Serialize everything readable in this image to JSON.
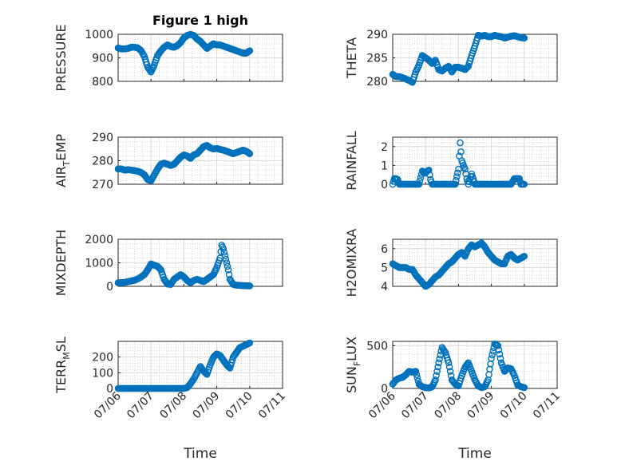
{
  "figure": {
    "title": "Figure 1 high",
    "xlabel": "Time",
    "x_tick_labels": [
      "07/06",
      "07/07",
      "07/08",
      "07/09",
      "07/10",
      "07/11"
    ],
    "marker_color": "#0072BD",
    "grid": "on (major + minor dotted)"
  },
  "chart_data": [
    {
      "type": "scatter",
      "ylabel": "PRESSURE",
      "ylim": [
        800,
        1000
      ],
      "yticks": [
        "800",
        "900",
        "1000"
      ],
      "xlim": [
        0,
        5
      ],
      "x": [
        0.0,
        0.1,
        0.2,
        0.3,
        0.4,
        0.5,
        0.6,
        0.7,
        0.8,
        0.9,
        1.0,
        1.1,
        1.2,
        1.3,
        1.4,
        1.5,
        1.6,
        1.7,
        1.8,
        1.9,
        2.0,
        2.1,
        2.2,
        2.3,
        2.4,
        2.5,
        2.6,
        2.7,
        2.8,
        2.9,
        3.0,
        3.1,
        3.2,
        3.3,
        3.4,
        3.5,
        3.6,
        3.7,
        3.8,
        3.9,
        4.0
      ],
      "y": [
        942,
        938,
        938,
        940,
        945,
        945,
        942,
        930,
        905,
        860,
        840,
        870,
        910,
        930,
        945,
        955,
        948,
        945,
        952,
        965,
        985,
        995,
        1000,
        995,
        980,
        970,
        955,
        940,
        950,
        960,
        955,
        955,
        950,
        945,
        940,
        935,
        930,
        925,
        920,
        920,
        930
      ]
    },
    {
      "type": "scatter",
      "ylabel": "THETA",
      "ylim": [
        280,
        290
      ],
      "yticks": [
        "280",
        "285",
        "290"
      ],
      "xlim": [
        0,
        5
      ],
      "x": [
        0.0,
        0.1,
        0.2,
        0.3,
        0.4,
        0.5,
        0.6,
        0.7,
        0.8,
        0.9,
        1.0,
        1.1,
        1.2,
        1.3,
        1.4,
        1.5,
        1.6,
        1.7,
        1.8,
        1.9,
        2.0,
        2.1,
        2.2,
        2.3,
        2.4,
        2.5,
        2.6,
        2.7,
        2.8,
        2.9,
        3.0,
        3.1,
        3.2,
        3.3,
        3.4,
        3.5,
        3.6,
        3.7,
        3.8,
        3.9,
        4.0
      ],
      "y": [
        281.5,
        281.0,
        281.0,
        280.8,
        280.5,
        280.2,
        279.8,
        282,
        283.5,
        285.5,
        285.0,
        284.5,
        283.8,
        284.5,
        282.5,
        282.2,
        282.8,
        283.2,
        282.0,
        283.0,
        283.0,
        282.8,
        282.5,
        283.2,
        285.5,
        287.5,
        289.8,
        289.6,
        289.8,
        289.5,
        289.5,
        289.8,
        289.6,
        289.5,
        289.2,
        289.4,
        289.6,
        289.7,
        289.5,
        289.3,
        289.2
      ]
    },
    {
      "type": "scatter",
      "ylabel": "AIR_TEMP",
      "ylabel_parts": [
        "AIR",
        "T",
        "EMP"
      ],
      "ylim": [
        270,
        290
      ],
      "yticks": [
        "270",
        "280",
        "290"
      ],
      "xlim": [
        0,
        5
      ],
      "x": [
        0.0,
        0.1,
        0.2,
        0.3,
        0.4,
        0.5,
        0.6,
        0.7,
        0.8,
        0.9,
        1.0,
        1.1,
        1.2,
        1.3,
        1.4,
        1.5,
        1.6,
        1.7,
        1.8,
        1.9,
        2.0,
        2.1,
        2.2,
        2.3,
        2.4,
        2.5,
        2.6,
        2.7,
        2.8,
        2.9,
        3.0,
        3.1,
        3.2,
        3.3,
        3.4,
        3.5,
        3.6,
        3.7,
        3.8,
        3.9,
        4.0
      ],
      "y": [
        276.5,
        276.5,
        276.0,
        276.2,
        276.0,
        275.8,
        275.5,
        275.0,
        274.0,
        272.0,
        271.5,
        274.0,
        276.5,
        278.5,
        279.0,
        278.5,
        278.0,
        278.5,
        280.0,
        281.5,
        282.5,
        282.0,
        281.0,
        282.5,
        283.0,
        284.5,
        286.0,
        286.5,
        285.5,
        285.0,
        285.2,
        284.8,
        284.5,
        284.0,
        283.5,
        283.0,
        283.5,
        284.0,
        284.5,
        284.0,
        283.0
      ]
    },
    {
      "type": "scatter",
      "ylabel": "RAINFALL",
      "ylim": [
        0,
        2.5
      ],
      "yticks": [
        "0",
        "1",
        "2"
      ],
      "xlim": [
        0,
        5
      ],
      "x": [
        0.0,
        0.05,
        0.1,
        0.15,
        0.2,
        0.3,
        0.4,
        0.5,
        0.6,
        0.7,
        0.8,
        0.9,
        1.0,
        1.05,
        1.1,
        1.15,
        1.2,
        1.3,
        1.4,
        1.5,
        1.6,
        1.7,
        1.8,
        1.9,
        2.0,
        2.05,
        2.1,
        2.15,
        2.2,
        2.25,
        2.3,
        2.4,
        2.5,
        2.6,
        2.7,
        2.8,
        2.9,
        3.0,
        3.1,
        3.2,
        3.3,
        3.4,
        3.5,
        3.6,
        3.7,
        3.8,
        3.85,
        3.9,
        4.0
      ],
      "y": [
        0,
        0.3,
        0.3,
        0.25,
        0,
        0,
        0,
        0,
        0,
        0,
        0,
        0.7,
        0.6,
        0.7,
        0.75,
        0.25,
        0,
        0,
        0,
        0,
        0,
        0,
        0,
        0,
        0.8,
        2.2,
        1.25,
        1.0,
        0.8,
        0.3,
        0,
        0.55,
        0,
        0,
        0,
        0,
        0,
        0,
        0,
        0,
        0,
        0,
        0,
        0,
        0.3,
        0.3,
        0.3,
        0,
        0
      ]
    },
    {
      "type": "scatter",
      "ylabel": "MIXDEPTH",
      "ylim": [
        0,
        2000
      ],
      "yticks": [
        "0",
        "1000",
        "2000"
      ],
      "xlim": [
        0,
        5
      ],
      "x": [
        0.0,
        0.1,
        0.2,
        0.3,
        0.4,
        0.5,
        0.6,
        0.7,
        0.8,
        0.9,
        1.0,
        1.1,
        1.2,
        1.3,
        1.4,
        1.5,
        1.6,
        1.7,
        1.8,
        1.9,
        2.0,
        2.1,
        2.2,
        2.3,
        2.4,
        2.5,
        2.6,
        2.7,
        2.8,
        2.9,
        3.0,
        3.05,
        3.1,
        3.15,
        3.2,
        3.25,
        3.3,
        3.35,
        3.4,
        3.5,
        3.6,
        3.7,
        3.8,
        3.9,
        4.0
      ],
      "y": [
        150,
        160,
        170,
        200,
        230,
        260,
        320,
        400,
        500,
        700,
        950,
        900,
        850,
        700,
        300,
        100,
        80,
        300,
        400,
        500,
        400,
        250,
        150,
        250,
        300,
        250,
        200,
        300,
        400,
        500,
        800,
        1000,
        1200,
        1750,
        1600,
        1300,
        1000,
        700,
        300,
        80,
        50,
        40,
        30,
        25,
        20
      ]
    },
    {
      "type": "scatter",
      "ylabel": "H2OMIXRA",
      "ylim": [
        4,
        6.5
      ],
      "yticks": [
        "4",
        "5",
        "6"
      ],
      "xlim": [
        0,
        5
      ],
      "x": [
        0.0,
        0.1,
        0.2,
        0.3,
        0.4,
        0.5,
        0.6,
        0.7,
        0.8,
        0.9,
        1.0,
        1.1,
        1.2,
        1.3,
        1.4,
        1.5,
        1.6,
        1.7,
        1.8,
        1.9,
        2.0,
        2.1,
        2.2,
        2.3,
        2.4,
        2.5,
        2.6,
        2.7,
        2.8,
        2.9,
        3.0,
        3.1,
        3.2,
        3.3,
        3.4,
        3.5,
        3.6,
        3.7,
        3.8,
        3.9,
        4.0
      ],
      "y": [
        5.2,
        5.1,
        5.0,
        5.0,
        5.0,
        4.9,
        4.9,
        4.6,
        4.4,
        4.2,
        4.0,
        4.1,
        4.3,
        4.5,
        4.6,
        4.8,
        5.0,
        5.2,
        5.3,
        5.5,
        5.7,
        5.8,
        5.6,
        6.0,
        6.2,
        6.1,
        6.2,
        6.3,
        6.1,
        5.8,
        5.6,
        5.4,
        5.3,
        5.2,
        5.2,
        5.6,
        5.7,
        5.5,
        5.4,
        5.5,
        5.6
      ]
    },
    {
      "type": "scatter",
      "ylabel": "TERR_MSL",
      "ylabel_parts": [
        "TERR",
        "M",
        "SL"
      ],
      "ylim": [
        0,
        300
      ],
      "yticks": [
        "0",
        "100",
        "200"
      ],
      "xlim": [
        0,
        5
      ],
      "x": [
        0.0,
        0.2,
        0.4,
        0.6,
        0.8,
        1.0,
        1.2,
        1.4,
        1.6,
        1.8,
        2.0,
        2.1,
        2.2,
        2.3,
        2.4,
        2.5,
        2.6,
        2.7,
        2.8,
        2.9,
        3.0,
        3.1,
        3.2,
        3.3,
        3.4,
        3.5,
        3.6,
        3.7,
        3.8,
        3.9,
        4.0
      ],
      "y": [
        0,
        0,
        0,
        0,
        0,
        0,
        0,
        0,
        0,
        0,
        0,
        5,
        30,
        60,
        100,
        140,
        110,
        90,
        150,
        200,
        220,
        210,
        180,
        150,
        130,
        200,
        230,
        260,
        270,
        280,
        290
      ]
    },
    {
      "type": "scatter",
      "ylabel": "SUN_FLUX",
      "ylabel_parts": [
        "SUN",
        "F",
        "LUX"
      ],
      "ylim": [
        0,
        550
      ],
      "yticks": [
        "0",
        "500"
      ],
      "xlim": [
        0,
        5
      ],
      "x": [
        0.0,
        0.1,
        0.2,
        0.3,
        0.4,
        0.5,
        0.6,
        0.7,
        0.8,
        0.9,
        1.0,
        1.1,
        1.2,
        1.3,
        1.4,
        1.5,
        1.6,
        1.7,
        1.8,
        1.9,
        2.0,
        2.1,
        2.2,
        2.3,
        2.4,
        2.5,
        2.6,
        2.7,
        2.8,
        2.9,
        3.0,
        3.1,
        3.2,
        3.3,
        3.4,
        3.5,
        3.6,
        3.7,
        3.8,
        3.9,
        4.0
      ],
      "y": [
        50,
        100,
        120,
        130,
        160,
        200,
        190,
        200,
        50,
        20,
        10,
        5,
        20,
        100,
        300,
        480,
        420,
        300,
        100,
        50,
        30,
        150,
        250,
        300,
        200,
        100,
        30,
        10,
        20,
        100,
        350,
        520,
        500,
        300,
        200,
        240,
        230,
        150,
        40,
        20,
        10
      ]
    }
  ]
}
